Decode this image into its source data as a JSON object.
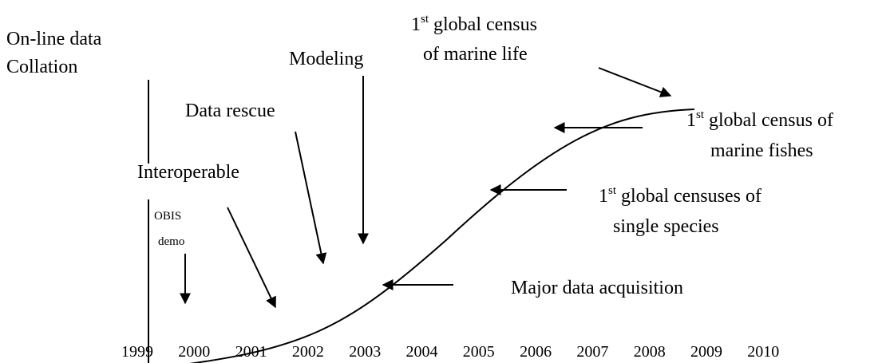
{
  "axis_label": [
    "On-line data",
    "Collation"
  ],
  "x_labels": [
    "1999",
    "2000",
    "2001",
    "2002",
    "2003",
    "2004",
    "2005",
    "2006",
    "2007",
    "2008",
    "2009",
    "2010"
  ],
  "annotations": [
    {
      "lines": [
        [
          "1",
          "st",
          " global census"
        ],
        [
          "of marine life"
        ]
      ]
    },
    {
      "lines": [
        [
          "Modeling"
        ]
      ]
    },
    {
      "lines": [
        [
          "Data rescue"
        ]
      ]
    },
    {
      "lines": [
        [
          "Interoperable"
        ]
      ]
    },
    {
      "lines": [
        [
          "OBIS"
        ],
        [
          "demo"
        ]
      ]
    },
    {
      "lines": [
        [
          "1",
          "st",
          " global census of"
        ],
        [
          "marine fishes"
        ]
      ]
    },
    {
      "lines": [
        [
          "1",
          "st",
          " global censuses of"
        ],
        [
          "single species"
        ]
      ]
    },
    {
      "lines": [
        [
          "Major data acquisition"
        ]
      ]
    }
  ]
}
